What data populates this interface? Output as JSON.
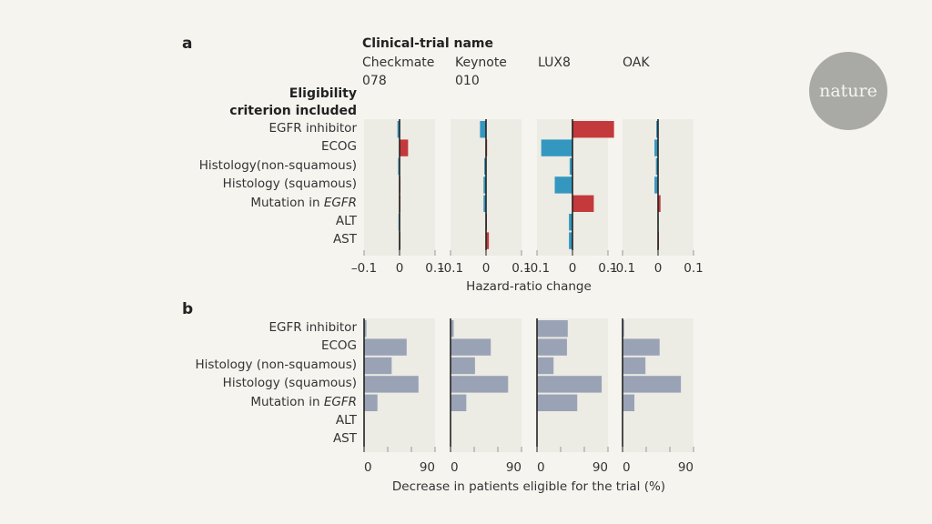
{
  "logo": {
    "text": "nature"
  },
  "panel_a": {
    "letter": "a",
    "header_title": "Clinical-trial name",
    "row_header_line1": "Eligibility",
    "row_header_line2": "criterion included",
    "xlabel": "Hazard-ratio change"
  },
  "panel_b": {
    "letter": "b",
    "xlabel": "Decrease in patients eligible for the trial (%)"
  },
  "trials": [
    {
      "line1": "Checkmate",
      "line2": "078"
    },
    {
      "line1": "Keynote",
      "line2": "010"
    },
    {
      "line1": "LUX8",
      "line2": ""
    },
    {
      "line1": "OAK",
      "line2": ""
    }
  ],
  "rows_a": [
    "EGFR inhibitor",
    "ECOG",
    "Histology(non-squamous)",
    "Histology (squamous)",
    "Mutation in EGFR",
    "ALT",
    "AST"
  ],
  "rows_b": [
    "EGFR inhibitor",
    "ECOG",
    "Histology (non-squamous)",
    "Histology (squamous)",
    "Mutation in EGFR",
    "ALT",
    "AST"
  ],
  "colors": {
    "positive": "#c4393b",
    "negative": "#3397bf",
    "decrease": "#9aa3b5",
    "plot_bg": "#ecebe4"
  },
  "chart_data": [
    {
      "type": "bar",
      "title": "a",
      "xlabel": "Hazard-ratio change",
      "categories": [
        "EGFR inhibitor",
        "ECOG",
        "Histology(non-squamous)",
        "Histology (squamous)",
        "Mutation in EGFR",
        "ALT",
        "AST"
      ],
      "xlim": [
        -0.1,
        0.1
      ],
      "ticks": [
        "-0.1",
        "0",
        "0.1"
      ],
      "series": [
        {
          "name": "Checkmate 078",
          "values": [
            -0.006,
            0.024,
            -0.004,
            0.002,
            0.0,
            -0.003,
            0.002
          ]
        },
        {
          "name": "Keynote 010",
          "values": [
            -0.017,
            0.003,
            -0.005,
            -0.007,
            -0.007,
            0.002,
            0.008
          ]
        },
        {
          "name": "LUX8",
          "values": [
            0.117,
            -0.088,
            -0.008,
            -0.05,
            0.06,
            -0.01,
            -0.01
          ]
        },
        {
          "name": "OAK",
          "values": [
            -0.005,
            -0.01,
            -0.006,
            -0.01,
            0.007,
            -0.001,
            0.0
          ]
        }
      ]
    },
    {
      "type": "bar",
      "title": "b",
      "xlabel": "Decrease in patients eligible for the trial (%)",
      "categories": [
        "EGFR inhibitor",
        "ECOG",
        "Histology (non-squamous)",
        "Histology (squamous)",
        "Mutation in EGFR",
        "ALT",
        "AST"
      ],
      "xlim": [
        0,
        90
      ],
      "ticks": [
        "0",
        "90"
      ],
      "series": [
        {
          "name": "Checkmate 078",
          "values": [
            3,
            54,
            35,
            69,
            17,
            0,
            0
          ]
        },
        {
          "name": "Keynote 010",
          "values": [
            4,
            51,
            31,
            73,
            20,
            0,
            0
          ]
        },
        {
          "name": "LUX8",
          "values": [
            39,
            38,
            21,
            82,
            51,
            0,
            0
          ]
        },
        {
          "name": "OAK",
          "values": [
            2,
            47,
            29,
            74,
            15,
            0,
            0
          ]
        }
      ]
    }
  ]
}
